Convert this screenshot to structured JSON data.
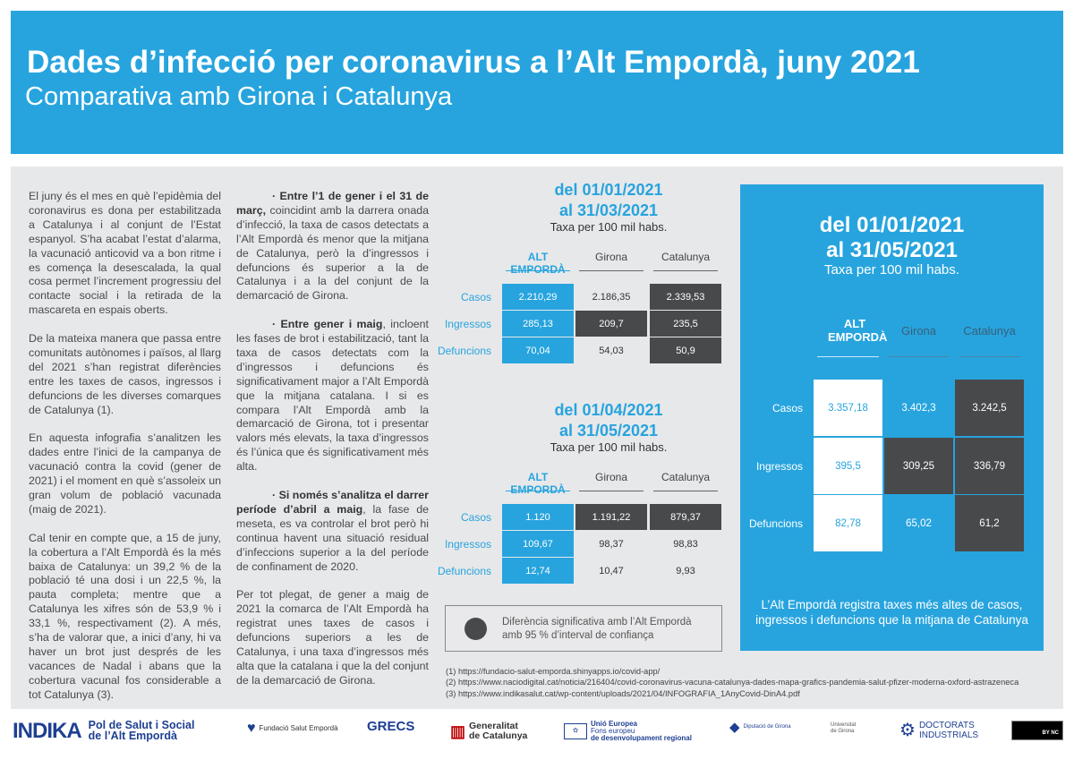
{
  "header": {
    "title": "Dades d’infecció per coronavirus a l’Alt Empordà, juny 2021",
    "subtitle": "Comparativa amb Girona i Catalunya"
  },
  "col1": [
    "El juny és el mes en què l’epidèmia del coronavirus es dona per estabilitzada a Catalunya i al conjunt de l’Estat espanyol. S’ha acabat l’estat d’alarma, la vacunació anticovid va a bon ritme i es comença la desescalada, la qual cosa permet l’increment progressiu del contacte social i la retirada de la mascareta en espais oberts.",
    "De la mateixa manera que passa entre comunitats autònomes i països, al llarg del 2021 s’han registrat diferències entre les taxes de casos, ingressos i defuncions de les diverses comarques de Catalunya (1).",
    "En aquesta infografia s’analitzen les dades entre l’inici de la campanya de vacunació contra la covid (gener de 2021) i el moment en què s’assoleix un gran volum de població vacunada (maig de 2021).",
    "Cal tenir en compte que, a 15 de juny, la cobertura a l’Alt Empordà és la més baixa de Catalunya: un 39,2 % de la població té una dosi i un 22,5 %, la pauta completa; mentre que a Catalunya les xifres són de 53,9 % i 33,1 %, respectivament (2). A més, s’ha de valorar que, a inici d’any, hi va haver un brot just després de les vacances de Nadal i abans que la cobertura vacunal fos considerable a tot Catalunya (3)."
  ],
  "col2": [
    {
      "lead": "· Entre l’1 de gener i el 31 de març,",
      "text": " coincidint amb la darrera onada d’infecció, la taxa de casos detectats a l’Alt Empordà és menor que la mitjana de Catalunya, però la d’ingressos i defuncions és superior a la de Catalunya i a la del conjunt de la demarcació de Girona."
    },
    {
      "lead": "· Entre gener i maig",
      "text": ", incloent les fases de brot i estabilització, tant la taxa de casos detectats com la d’ingressos i defuncions és significativament major a l’Alt Empordà que la mitjana catalana. I si es compara l’Alt Empordà amb la demarcació de Girona, tot i presentar valors més elevats, la taxa d’ingressos és l’única que és significativament més alta."
    },
    {
      "lead": "· Si només s’analitza el darrer període d’abril a maig",
      "text": ", la fase de meseta, es va controlar el brot però hi continua havent una situació residual d’infeccions superior a la del període de confinament de 2020."
    },
    {
      "lead": "",
      "text": "Per tot plegat, de gener a maig de 2021 la comarca de l’Alt Empordà ha registrat unes taxes de casos i defuncions superiors a les de Catalunya, i una taxa d’ingressos més alta que la catalana i que la del conjunt de la demarcació de Girona."
    }
  ],
  "columns": [
    "ALT EMPORDÀ",
    "Girona",
    "Catalunya"
  ],
  "big_columns": [
    "ALT EMPORDÀ",
    "Girona",
    "Catalunya"
  ],
  "rows": [
    "Casos",
    "Ingressos",
    "Defuncions"
  ],
  "tables": [
    {
      "line1": "del 01/01/2021",
      "line2": "al 31/03/2021",
      "unit": "Taxa per 100 mil habs.",
      "values": [
        [
          "2.210,29",
          "2.186,35",
          "2.339,53"
        ],
        [
          "285,13",
          "209,7",
          "235,5"
        ],
        [
          "70,04",
          "54,03",
          "50,9"
        ]
      ],
      "significant": [
        [
          false,
          false,
          true
        ],
        [
          false,
          true,
          true
        ],
        [
          false,
          false,
          true
        ]
      ]
    },
    {
      "line1": "del 01/04/2021",
      "line2": "al 31/05/2021",
      "unit": "Taxa per 100 mil habs.",
      "values": [
        [
          "1.120",
          "1.191,22",
          "879,37"
        ],
        [
          "109,67",
          "98,37",
          "98,83"
        ],
        [
          "12,74",
          "10,47",
          "9,93"
        ]
      ],
      "significant": [
        [
          false,
          true,
          true
        ],
        [
          false,
          false,
          false
        ],
        [
          false,
          false,
          false
        ]
      ]
    },
    {
      "line1": "del 01/01/2021",
      "line2": "al 31/05/2021",
      "unit": "Taxa per 100 mil habs.",
      "values": [
        [
          "3.357,18",
          "3.402,3",
          "3.242,5"
        ],
        [
          "395,5",
          "309,25",
          "336,79"
        ],
        [
          "82,78",
          "65,02",
          "61,2"
        ]
      ],
      "significant": [
        [
          false,
          false,
          true
        ],
        [
          false,
          true,
          true
        ],
        [
          false,
          false,
          true
        ]
      ],
      "caption": "L’Alt Empordà registra taxes més altes de casos, ingressos i defuncions que la mitjana de Catalunya"
    }
  ],
  "legend": {
    "line1": "Diferència significativa amb l’Alt Empordà",
    "line2": "amb 95 % d’interval de confiança"
  },
  "refs": [
    "(1) https://fundacio-salut-emporda.shinyapps.io/covid-app/",
    "(2) https://www.naciodigital.cat/noticia/216404/covid-coronavirus-vacuna-catalunya-dades-mapa-grafics-pandemia-salut-pfizer-moderna-oxford-astrazeneca",
    "(3) https://www.indikasalut.cat/wp-content/uploads/2021/04/INFOGRAFIA_1AnyCovid-DinA4.pdf"
  ],
  "logos": {
    "indika": "INDIKA",
    "pol1": "Pol de Salut i Social",
    "pol2": "de l’Alt Empordà",
    "fundacio": "Fundació Salut Empordà",
    "grecs": "GRECS",
    "gen1": "Generalitat",
    "gen2": "de Catalunya",
    "ue1": "Unió Europea",
    "ue2": "Fons europeu",
    "ue3": "de desenvolupament regional",
    "diputacio": "Diputació de Girona",
    "udg1": "Universitat",
    "udg2": "de Girona",
    "doc1": "DOCTORATS",
    "doc2": "INDUSTRIALS",
    "cc": "BY NC"
  },
  "colors": {
    "brand_blue": "#27a4de",
    "significant": "#48494b",
    "panel": "#e7e8ea"
  }
}
